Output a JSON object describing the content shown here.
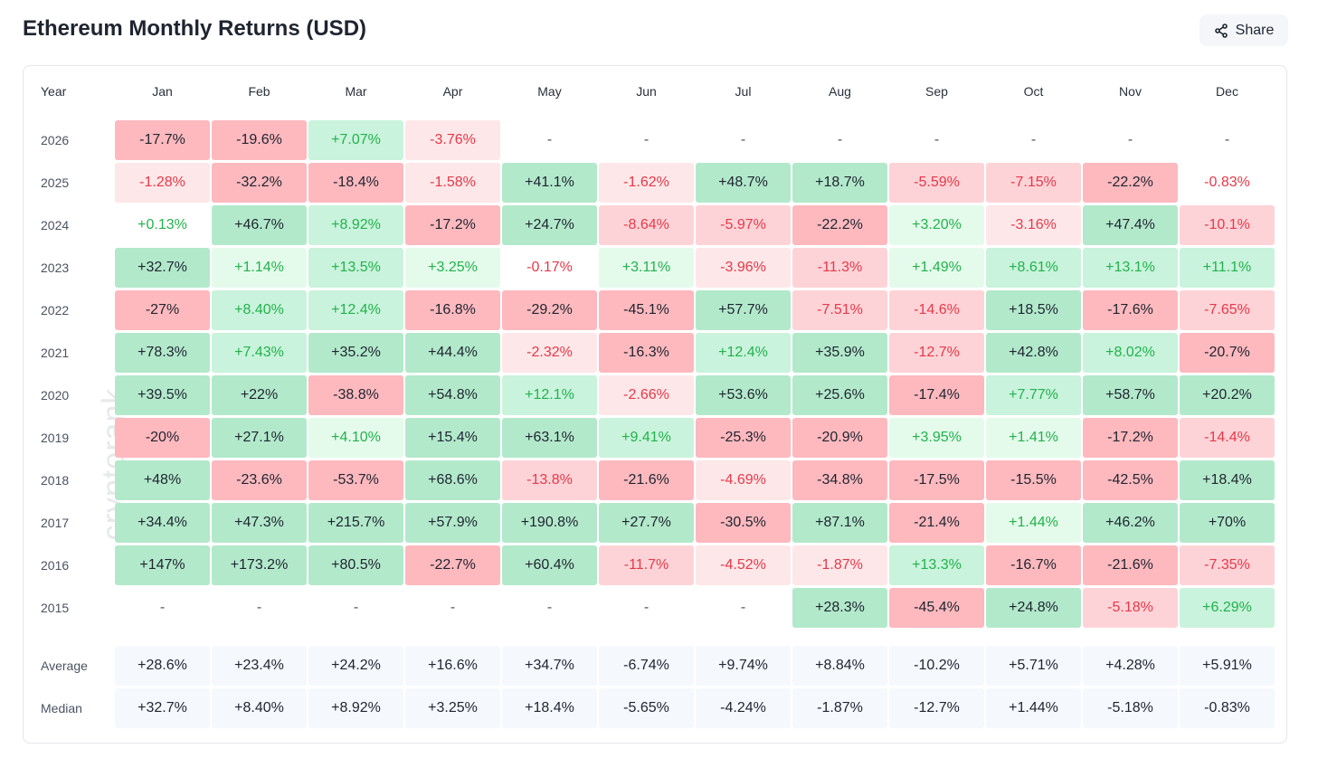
{
  "header": {
    "title": "Ethereum Monthly Returns (USD)",
    "share": "Share"
  },
  "watermark": "cryptorank",
  "table": {
    "columns": [
      "Year",
      "Jan",
      "Feb",
      "Mar",
      "Apr",
      "May",
      "Jun",
      "Jul",
      "Aug",
      "Sep",
      "Oct",
      "Nov",
      "Dec"
    ],
    "rows": [
      [
        "2026",
        "-17.7%",
        "-19.6%",
        "+7.07%",
        "-3.76%",
        "-",
        "-",
        "-",
        "-",
        "-",
        "-",
        "-",
        "-"
      ],
      [
        "2025",
        "-1.28%",
        "-32.2%",
        "-18.4%",
        "-1.58%",
        "+41.1%",
        "-1.62%",
        "+48.7%",
        "+18.7%",
        "-5.59%",
        "-7.15%",
        "-22.2%",
        "-0.83%"
      ],
      [
        "2024",
        "+0.13%",
        "+46.7%",
        "+8.92%",
        "-17.2%",
        "+24.7%",
        "-8.64%",
        "-5.97%",
        "-22.2%",
        "+3.20%",
        "-3.16%",
        "+47.4%",
        "-10.1%"
      ],
      [
        "2023",
        "+32.7%",
        "+1.14%",
        "+13.5%",
        "+3.25%",
        "-0.17%",
        "+3.11%",
        "-3.96%",
        "-11.3%",
        "+1.49%",
        "+8.61%",
        "+13.1%",
        "+11.1%"
      ],
      [
        "2022",
        "-27%",
        "+8.40%",
        "+12.4%",
        "-16.8%",
        "-29.2%",
        "-45.1%",
        "+57.7%",
        "-7.51%",
        "-14.6%",
        "+18.5%",
        "-17.6%",
        "-7.65%"
      ],
      [
        "2021",
        "+78.3%",
        "+7.43%",
        "+35.2%",
        "+44.4%",
        "-2.32%",
        "-16.3%",
        "+12.4%",
        "+35.9%",
        "-12.7%",
        "+42.8%",
        "+8.02%",
        "-20.7%"
      ],
      [
        "2020",
        "+39.5%",
        "+22%",
        "-38.8%",
        "+54.8%",
        "+12.1%",
        "-2.66%",
        "+53.6%",
        "+25.6%",
        "-17.4%",
        "+7.77%",
        "+58.7%",
        "+20.2%"
      ],
      [
        "2019",
        "-20%",
        "+27.1%",
        "+4.10%",
        "+15.4%",
        "+63.1%",
        "+9.41%",
        "-25.3%",
        "-20.9%",
        "+3.95%",
        "+1.41%",
        "-17.2%",
        "-14.4%"
      ],
      [
        "2018",
        "+48%",
        "-23.6%",
        "-53.7%",
        "+68.6%",
        "-13.8%",
        "-21.6%",
        "-4.69%",
        "-34.8%",
        "-17.5%",
        "-15.5%",
        "-42.5%",
        "+18.4%"
      ],
      [
        "2017",
        "+34.4%",
        "+47.3%",
        "+215.7%",
        "+57.9%",
        "+190.8%",
        "+27.7%",
        "-30.5%",
        "+87.1%",
        "-21.4%",
        "+1.44%",
        "+46.2%",
        "+70%"
      ],
      [
        "2016",
        "+147%",
        "+173.2%",
        "+80.5%",
        "-22.7%",
        "+60.4%",
        "-11.7%",
        "-4.52%",
        "-1.87%",
        "+13.3%",
        "-16.7%",
        "-21.6%",
        "-7.35%"
      ],
      [
        "2015",
        "-",
        "-",
        "-",
        "-",
        "-",
        "-",
        "-",
        "+28.3%",
        "-45.4%",
        "+24.8%",
        "-5.18%",
        "+6.29%"
      ]
    ],
    "summary": [
      [
        "Average",
        "+28.6%",
        "+23.4%",
        "+24.2%",
        "+16.6%",
        "+34.7%",
        "-6.74%",
        "+9.74%",
        "+8.84%",
        "-10.2%",
        "+5.71%",
        "+4.28%",
        "+5.91%"
      ],
      [
        "Median",
        "+32.7%",
        "+8.40%",
        "+8.92%",
        "+3.25%",
        "+18.4%",
        "-5.65%",
        "-4.24%",
        "-1.87%",
        "-12.7%",
        "+1.44%",
        "-5.18%",
        "-0.83%"
      ]
    ]
  }
}
